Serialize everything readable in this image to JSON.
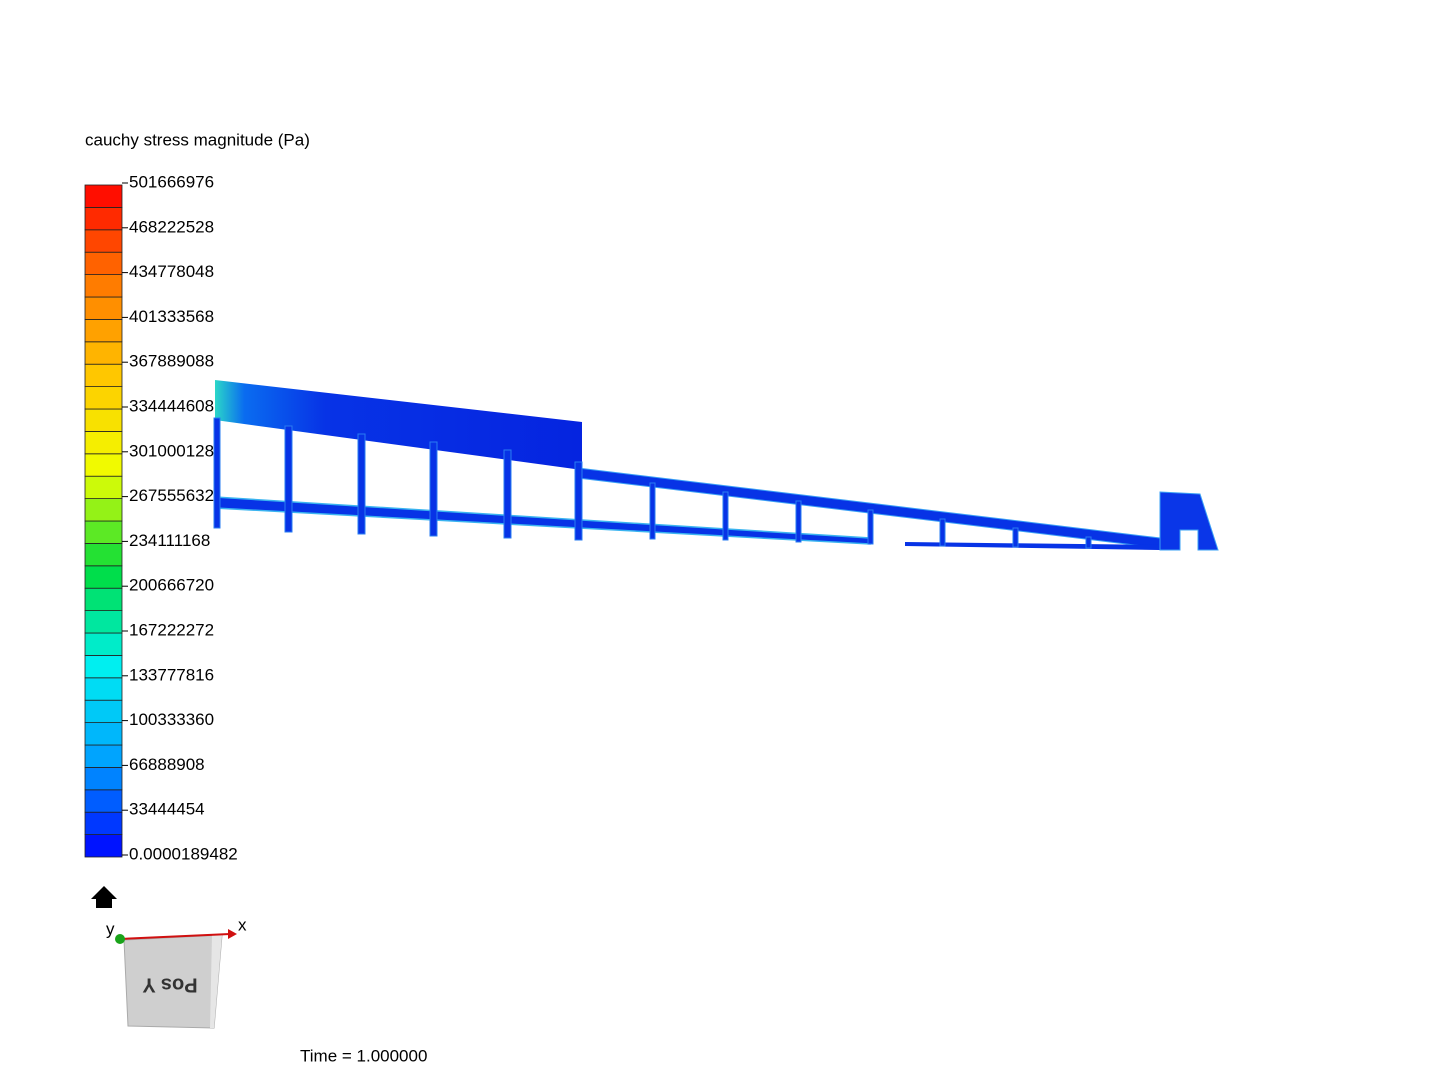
{
  "legend": {
    "title": "cauchy stress magnitude (Pa)",
    "labels": [
      "501666976",
      "468222528",
      "434778048",
      "401333568",
      "367889088",
      "334444608",
      "301000128",
      "267555632",
      "234111168",
      "200666720",
      "167222272",
      "133777816",
      "100333360",
      "66888908",
      "33444454",
      "0.0000189482"
    ]
  },
  "orientation": {
    "x_label": "x",
    "y_label": "y",
    "face_label": "Pos Y"
  },
  "footer": {
    "time": "Time = 1.000000"
  }
}
